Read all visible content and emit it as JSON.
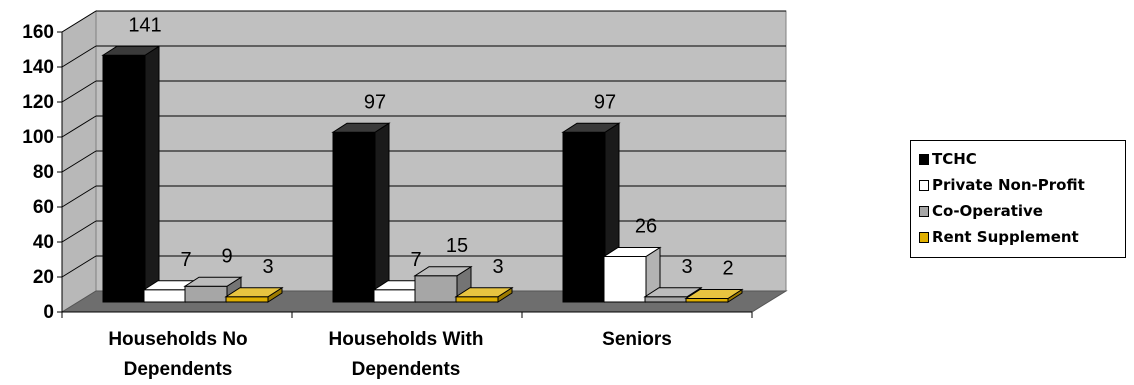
{
  "chart_data": {
    "type": "bar",
    "categories": [
      "Households No Dependents",
      "Households With Dependents",
      "Seniors"
    ],
    "category_lines": [
      [
        "Households No",
        "Dependents"
      ],
      [
        "Households With",
        "Dependents"
      ],
      [
        "Seniors"
      ]
    ],
    "series": [
      {
        "name": "TCHC",
        "values": [
          141,
          97,
          97
        ],
        "color": "#000000"
      },
      {
        "name": "Private Non-Profit",
        "values": [
          7,
          7,
          26
        ],
        "color": "#ffffff"
      },
      {
        "name": "Co-Operative",
        "values": [
          9,
          15,
          3
        ],
        "color": "#a6a6a6"
      },
      {
        "name": "Rent Supplement",
        "values": [
          3,
          3,
          2
        ],
        "color": "#e0b000"
      }
    ],
    "ylim": [
      0,
      160
    ],
    "yticks": [
      "0",
      "20",
      "40",
      "60",
      "80",
      "100",
      "120",
      "140",
      "160"
    ],
    "grid": true,
    "three_d": true,
    "legend_position": "right"
  }
}
